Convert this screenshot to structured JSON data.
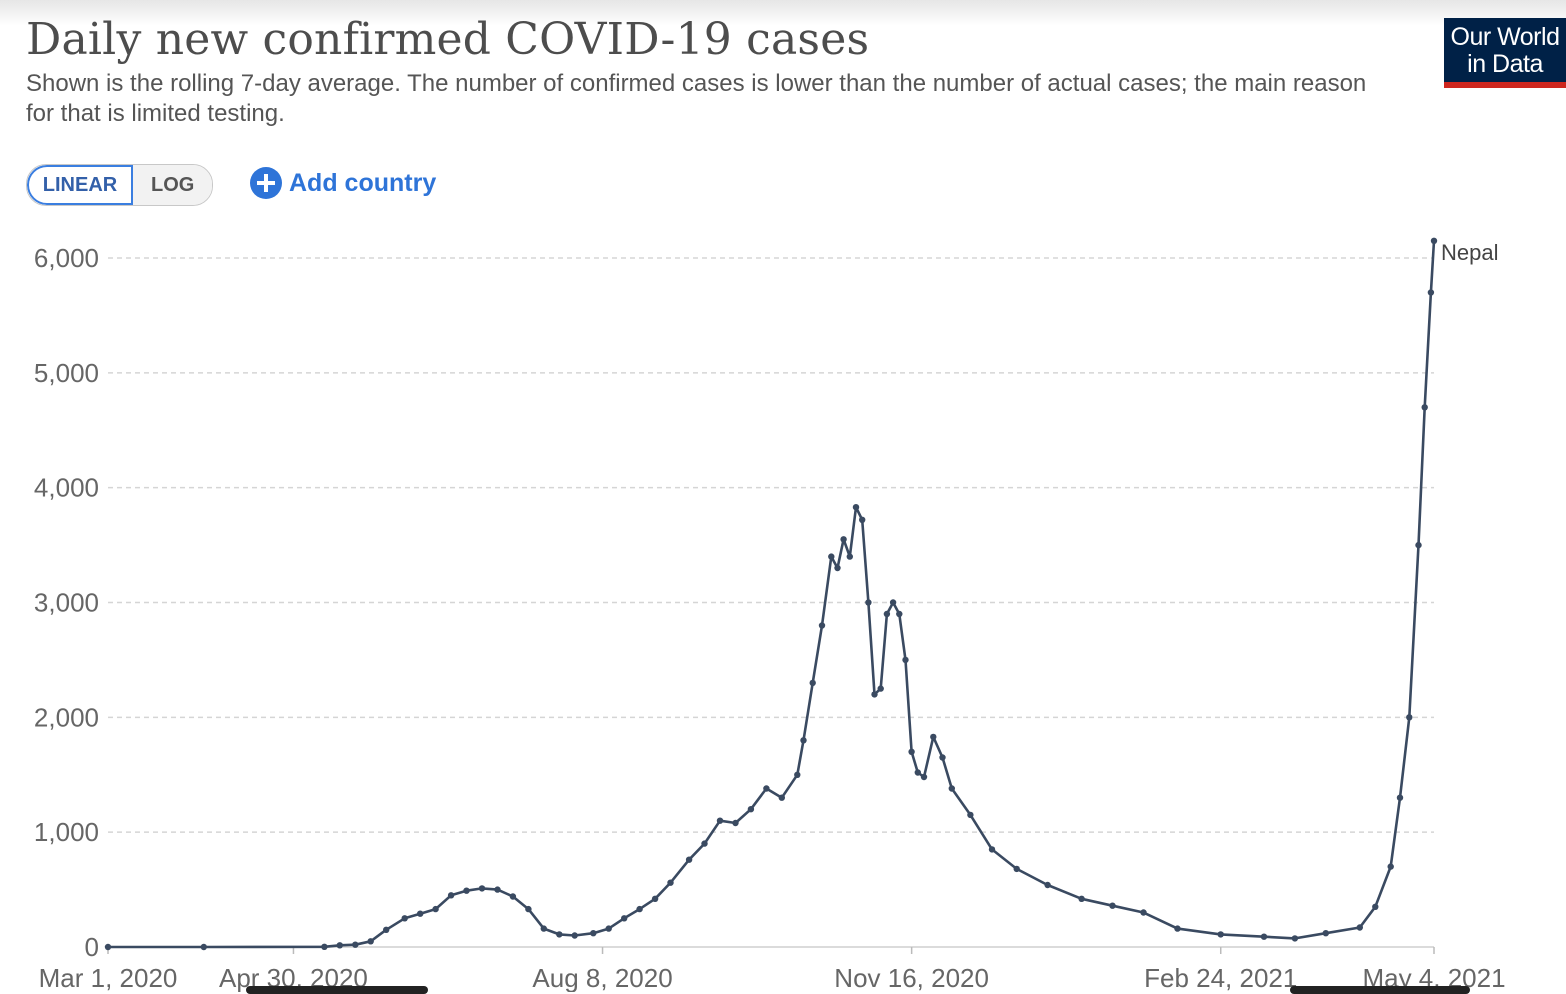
{
  "header": {
    "title": "Daily new confirmed COVID-19 cases",
    "subtitle": "Shown is the rolling 7-day average. The number of confirmed cases is lower than the number of actual cases; the main reason for that is limited testing.",
    "logo_line1": "Our World",
    "logo_line2": "in Data"
  },
  "controls": {
    "linear_label": "LINEAR",
    "log_label": "LOG",
    "add_country_label": "Add country"
  },
  "colors": {
    "series": "#3a4a61",
    "grid": "#d5d5d5",
    "accent_blue": "#2e74d8",
    "logo_bg": "#002147",
    "logo_red": "#ce261e"
  },
  "chart_data": {
    "type": "line",
    "title": "Daily new confirmed COVID-19 cases",
    "xlabel": "",
    "ylabel": "",
    "ylim": [
      0,
      6000
    ],
    "grid": "horizontal dashed",
    "x_range": [
      "2020-03-01",
      "2021-05-04"
    ],
    "yticks": [
      {
        "value": 0,
        "label": "0"
      },
      {
        "value": 1000,
        "label": "1,000"
      },
      {
        "value": 2000,
        "label": "2,000"
      },
      {
        "value": 3000,
        "label": "3,000"
      },
      {
        "value": 4000,
        "label": "4,000"
      },
      {
        "value": 5000,
        "label": "5,000"
      },
      {
        "value": 6000,
        "label": "6,000"
      }
    ],
    "xticks": [
      {
        "date": "2020-03-01",
        "label": "Mar 1, 2020"
      },
      {
        "date": "2020-04-30",
        "label": "Apr 30, 2020"
      },
      {
        "date": "2020-08-08",
        "label": "Aug 8, 2020"
      },
      {
        "date": "2020-11-16",
        "label": "Nov 16, 2020"
      },
      {
        "date": "2021-02-24",
        "label": "Feb 24, 2021"
      },
      {
        "date": "2021-05-04",
        "label": "May 4, 2021"
      }
    ],
    "series": [
      {
        "name": "Nepal",
        "points": [
          [
            "2020-03-01",
            0
          ],
          [
            "2020-04-01",
            0
          ],
          [
            "2020-05-10",
            2
          ],
          [
            "2020-05-15",
            15
          ],
          [
            "2020-05-20",
            20
          ],
          [
            "2020-05-25",
            50
          ],
          [
            "2020-05-30",
            150
          ],
          [
            "2020-06-05",
            250
          ],
          [
            "2020-06-10",
            290
          ],
          [
            "2020-06-15",
            330
          ],
          [
            "2020-06-20",
            450
          ],
          [
            "2020-06-25",
            490
          ],
          [
            "2020-06-30",
            510
          ],
          [
            "2020-07-05",
            500
          ],
          [
            "2020-07-10",
            440
          ],
          [
            "2020-07-15",
            330
          ],
          [
            "2020-07-20",
            160
          ],
          [
            "2020-07-25",
            110
          ],
          [
            "2020-07-30",
            100
          ],
          [
            "2020-08-05",
            120
          ],
          [
            "2020-08-10",
            160
          ],
          [
            "2020-08-15",
            250
          ],
          [
            "2020-08-20",
            330
          ],
          [
            "2020-08-25",
            420
          ],
          [
            "2020-08-30",
            560
          ],
          [
            "2020-09-05",
            760
          ],
          [
            "2020-09-10",
            900
          ],
          [
            "2020-09-15",
            1100
          ],
          [
            "2020-09-20",
            1080
          ],
          [
            "2020-09-25",
            1200
          ],
          [
            "2020-09-30",
            1380
          ],
          [
            "2020-10-05",
            1300
          ],
          [
            "2020-10-10",
            1500
          ],
          [
            "2020-10-12",
            1800
          ],
          [
            "2020-10-15",
            2300
          ],
          [
            "2020-10-18",
            2800
          ],
          [
            "2020-10-21",
            3400
          ],
          [
            "2020-10-23",
            3300
          ],
          [
            "2020-10-25",
            3550
          ],
          [
            "2020-10-27",
            3400
          ],
          [
            "2020-10-29",
            3830
          ],
          [
            "2020-10-31",
            3720
          ],
          [
            "2020-11-02",
            3000
          ],
          [
            "2020-11-04",
            2200
          ],
          [
            "2020-11-06",
            2250
          ],
          [
            "2020-11-08",
            2900
          ],
          [
            "2020-11-10",
            3000
          ],
          [
            "2020-11-12",
            2900
          ],
          [
            "2020-11-14",
            2500
          ],
          [
            "2020-11-16",
            1700
          ],
          [
            "2020-11-18",
            1520
          ],
          [
            "2020-11-20",
            1480
          ],
          [
            "2020-11-23",
            1830
          ],
          [
            "2020-11-26",
            1650
          ],
          [
            "2020-11-29",
            1380
          ],
          [
            "2020-12-05",
            1150
          ],
          [
            "2020-12-12",
            850
          ],
          [
            "2020-12-20",
            680
          ],
          [
            "2020-12-30",
            540
          ],
          [
            "2021-01-10",
            420
          ],
          [
            "2021-01-20",
            360
          ],
          [
            "2021-01-30",
            300
          ],
          [
            "2021-02-10",
            160
          ],
          [
            "2021-02-24",
            110
          ],
          [
            "2021-03-10",
            90
          ],
          [
            "2021-03-20",
            75
          ],
          [
            "2021-03-30",
            120
          ],
          [
            "2021-04-10",
            170
          ],
          [
            "2021-04-15",
            350
          ],
          [
            "2021-04-20",
            700
          ],
          [
            "2021-04-23",
            1300
          ],
          [
            "2021-04-26",
            2000
          ],
          [
            "2021-04-29",
            3500
          ],
          [
            "2021-05-01",
            4700
          ],
          [
            "2021-05-03",
            5700
          ],
          [
            "2021-05-04",
            6150
          ]
        ]
      }
    ]
  }
}
